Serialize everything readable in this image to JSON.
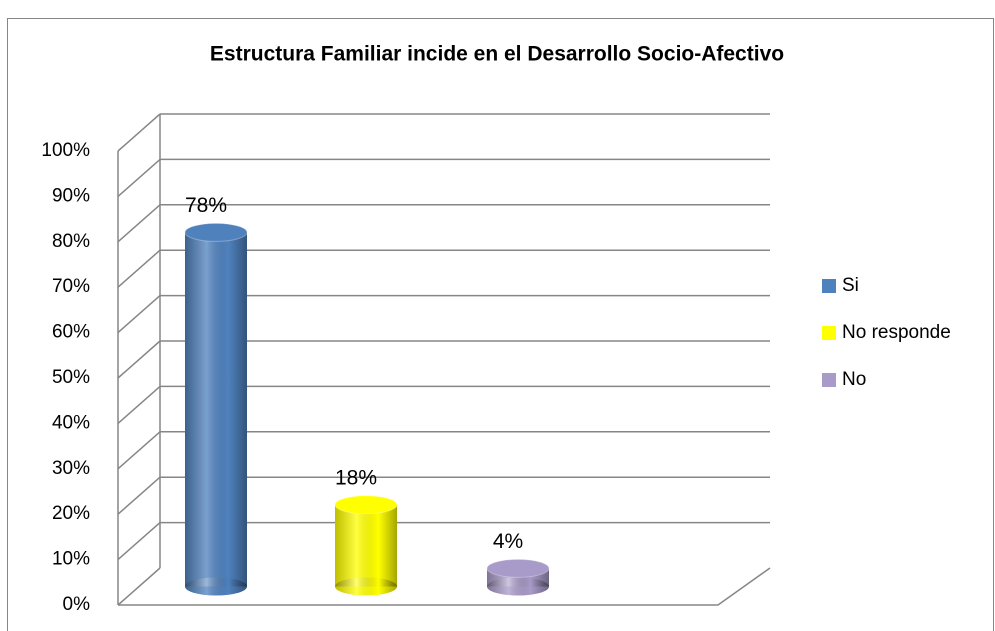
{
  "chart_data": {
    "type": "bar3d",
    "title": "Estructura Familiar incide en el Desarrollo Socio-Afectivo",
    "categories": [
      null
    ],
    "series": [
      {
        "name": "Si",
        "color": "#4f81bd",
        "values": [
          78
        ],
        "value_labels": [
          "78%"
        ]
      },
      {
        "name": "No responde",
        "color": "#ffff00",
        "values": [
          18
        ],
        "value_labels": [
          "18%"
        ]
      },
      {
        "name": "No",
        "color": "#a99bc9",
        "values": [
          4
        ],
        "value_labels": [
          "4%"
        ]
      }
    ],
    "ylim": [
      0,
      100
    ],
    "yticks": [
      {
        "value": 0,
        "label": "0%"
      },
      {
        "value": 10,
        "label": "10%"
      },
      {
        "value": 20,
        "label": "20%"
      },
      {
        "value": 30,
        "label": "30%"
      },
      {
        "value": 40,
        "label": "40%"
      },
      {
        "value": 50,
        "label": "50%"
      },
      {
        "value": 60,
        "label": "60%"
      },
      {
        "value": 70,
        "label": "70%"
      },
      {
        "value": 80,
        "label": "80%"
      },
      {
        "value": 90,
        "label": "90%"
      },
      {
        "value": 100,
        "label": "100%"
      }
    ],
    "grid": true,
    "legend": "right"
  }
}
